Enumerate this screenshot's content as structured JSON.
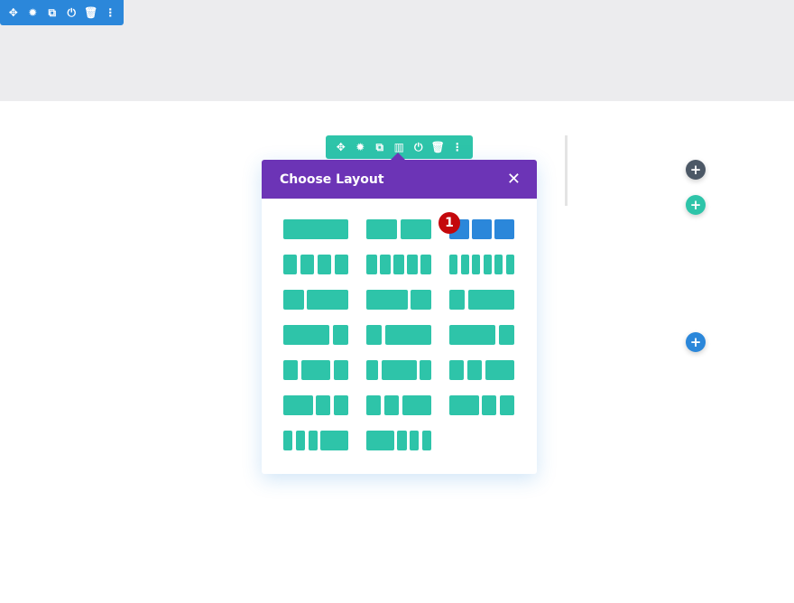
{
  "section_toolbar": {
    "icons": [
      "move-icon",
      "gear-icon",
      "duplicate-icon",
      "power-icon",
      "trash-icon",
      "more-icon"
    ],
    "glyphs": [
      "✥",
      "✹",
      "⧉",
      "⏻",
      "🗑",
      "⋮"
    ]
  },
  "row_toolbar": {
    "icons": [
      "move-icon",
      "gear-icon",
      "duplicate-icon",
      "columns-icon",
      "power-icon",
      "trash-icon",
      "more-icon"
    ],
    "glyphs": [
      "✥",
      "✹",
      "⧉",
      "▥",
      "⏻",
      "🗑",
      "⋮"
    ]
  },
  "modal": {
    "title": "Choose Layout",
    "close": "✕",
    "selected_index": 2,
    "layouts": [
      [
        1
      ],
      [
        1,
        1
      ],
      [
        1,
        1,
        1
      ],
      [
        1,
        1,
        1,
        1
      ],
      [
        1,
        1,
        1,
        1,
        1
      ],
      [
        1,
        1,
        1,
        1,
        1,
        1
      ],
      [
        1,
        2
      ],
      [
        2,
        1
      ],
      [
        1,
        3
      ],
      [
        3,
        1
      ],
      [
        1,
        3
      ],
      [
        3,
        1
      ],
      [
        1,
        2,
        1
      ],
      [
        1,
        3,
        1
      ],
      [
        1,
        1,
        2
      ],
      [
        2,
        1,
        1
      ],
      [
        1,
        1,
        2
      ],
      [
        2,
        1,
        1
      ],
      [
        1,
        1,
        1,
        3
      ],
      [
        3,
        1,
        1,
        1
      ]
    ]
  },
  "badge": "1",
  "buttons": {
    "plus": "+"
  },
  "colors": {
    "section": "#2b87da",
    "row": "#2ec4a9",
    "modal_header": "#6c34b6",
    "badge": "#c4080c",
    "dark": "#4c5866"
  }
}
